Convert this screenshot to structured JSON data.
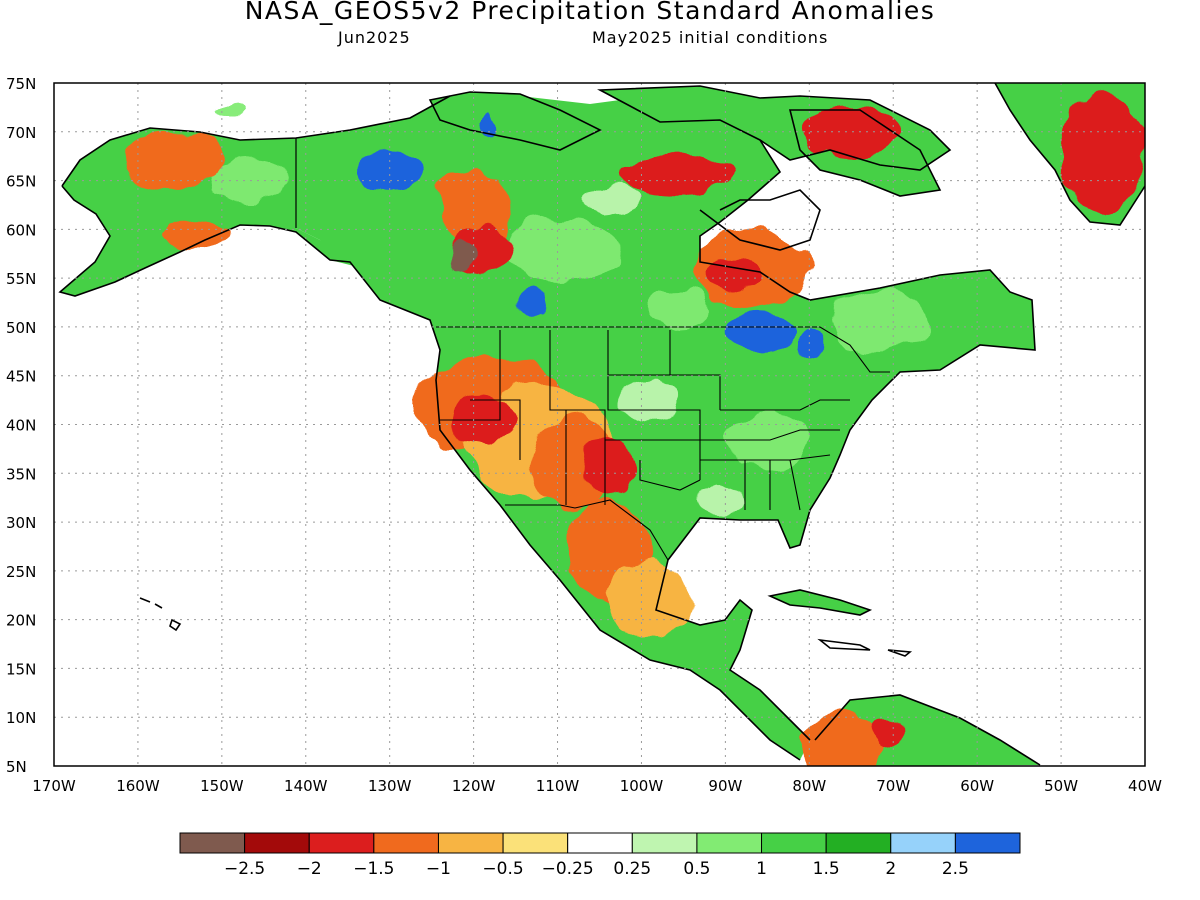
{
  "header": {
    "title": "NASA_GEOS5v2 Precipitation Standard Anomalies",
    "target_month": "Jun2025",
    "init_conditions": "May2025 initial conditions"
  },
  "map": {
    "projection": "cylindrical equidistant",
    "lon_range": [
      -170,
      -40
    ],
    "lat_range": [
      5,
      75
    ],
    "gridlines": "dotted",
    "lat_labels": [
      "5N",
      "10N",
      "15N",
      "20N",
      "25N",
      "30N",
      "35N",
      "40N",
      "45N",
      "50N",
      "55N",
      "60N",
      "65N",
      "70N",
      "75N"
    ],
    "lon_labels": [
      "170W",
      "160W",
      "150W",
      "140W",
      "130W",
      "120W",
      "110W",
      "100W",
      "90W",
      "80W",
      "70W",
      "60W",
      "50W",
      "40W"
    ]
  },
  "colorbar": {
    "colors": [
      "#7f5a4e",
      "#a30a0a",
      "#dc1e1e",
      "#f06a1e",
      "#f7b443",
      "#fbe179",
      "#ffffff",
      "#bff5b0",
      "#82eb73",
      "#46d046",
      "#23af23",
      "#96d2fa",
      "#1e64dc"
    ],
    "labels": [
      "−2.5",
      "−2",
      "−1.5",
      "−1",
      "−0.5",
      "−0.25",
      "0.25",
      "0.5",
      "1",
      "1.5",
      "2",
      "2.5"
    ]
  },
  "anomaly_regions": [
    {
      "cat": "orange",
      "lon": -118,
      "lat": 42,
      "rlon": 9,
      "rlat": 5
    },
    {
      "cat": "yellow",
      "lon": -112,
      "lat": 38,
      "rlon": 9,
      "rlat": 6
    },
    {
      "cat": "red",
      "lon": -119,
      "lat": 40.5,
      "rlon": 4,
      "rlat": 2.5
    },
    {
      "cat": "orange",
      "lon": -108,
      "lat": 36,
      "rlon": 5,
      "rlat": 5
    },
    {
      "cat": "red",
      "lon": -104,
      "lat": 35.5,
      "rlon": 3,
      "rlat": 3
    },
    {
      "cat": "orange",
      "lon": -104,
      "lat": 27,
      "rlon": 5,
      "rlat": 5
    },
    {
      "cat": "yellow",
      "lon": -99,
      "lat": 22,
      "rlon": 5,
      "rlat": 4
    },
    {
      "cat": "orange",
      "lon": -120,
      "lat": 62,
      "rlon": 4.5,
      "rlat": 4
    },
    {
      "cat": "red",
      "lon": -119,
      "lat": 58,
      "rlon": 3.5,
      "rlat": 2.5
    },
    {
      "cat": "brown",
      "lon": -121,
      "lat": 57.5,
      "rlon": 1.5,
      "rlat": 1.5
    },
    {
      "cat": "orange",
      "lon": -87,
      "lat": 56,
      "rlon": 7,
      "rlat": 4
    },
    {
      "cat": "red",
      "lon": -89,
      "lat": 55.5,
      "rlon": 3,
      "rlat": 1.5
    },
    {
      "cat": "red",
      "lon": -96,
      "lat": 65.5,
      "rlon": 7,
      "rlat": 2
    },
    {
      "cat": "red",
      "lon": -75,
      "lat": 70,
      "rlon": 6,
      "rlat": 2.5
    },
    {
      "cat": "orange",
      "lon": -156,
      "lat": 67,
      "rlon": 6,
      "rlat": 3
    },
    {
      "cat": "orange",
      "lon": -153,
      "lat": 59.5,
      "rlon": 4,
      "rlat": 1.5
    },
    {
      "cat": "red",
      "lon": -45,
      "lat": 68,
      "rlon": 5,
      "rlat": 6
    },
    {
      "cat": "orange",
      "lon": -76,
      "lat": 7,
      "rlon": 5,
      "rlat": 3.5
    },
    {
      "cat": "red",
      "lon": -71,
      "lat": 8.5,
      "rlon": 1.5,
      "rlat": 1.5
    },
    {
      "cat": "blue",
      "lon": -130,
      "lat": 66,
      "rlon": 4,
      "rlat": 2
    },
    {
      "cat": "blue",
      "lon": -113,
      "lat": 52.5,
      "rlon": 2,
      "rlat": 1.5
    },
    {
      "cat": "blue",
      "lon": -86,
      "lat": 49.5,
      "rlon": 4,
      "rlat": 2
    },
    {
      "cat": "blue",
      "lon": -80,
      "lat": 48,
      "rlon": 1.5,
      "rlat": 1.5
    },
    {
      "cat": "blue",
      "lon": -118,
      "lat": 71,
      "rlon": 1,
      "rlat": 1
    }
  ]
}
